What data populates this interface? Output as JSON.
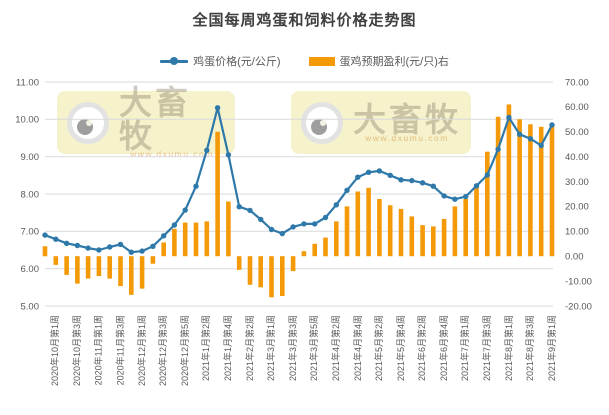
{
  "title": "全国每周鸡蛋和饲料价格走势图",
  "legend": [
    {
      "label": "鸡蛋价格(元/公斤)",
      "type": "line",
      "color": "#2e79a9"
    },
    {
      "label": "蛋鸡预期盈利(元/只)右",
      "type": "bar",
      "color": "#f49908"
    }
  ],
  "watermark": {
    "brand": "大畜牧",
    "url": "www.dxumu.com"
  },
  "colors": {
    "line": "#2e79a9",
    "bar": "#f49908",
    "grid": "#d9d9d9",
    "tick_text": "#595959"
  },
  "chart_data": {
    "type": "line+bar combo, dual axis",
    "x_labels_shown_every": 2,
    "x_labels": [
      "2020年10月第1周",
      "2020年10月第3周",
      "2020年11月第1周",
      "2020年11月第3周",
      "2020年12月第1周",
      "2020年12月第3周",
      "2020年12月第5周",
      "2021年1月第2周",
      "2021年1月第4周",
      "2021年2月第2周",
      "2021年3月第1周",
      "2021年3月第3周",
      "2021年3月第5周",
      "2021年4月第2周",
      "2021年4月第4周",
      "2021年5月第2周",
      "2021年5月第4周",
      "2021年6月第2周",
      "2021年6月第4周",
      "2021年7月第1周",
      "2021年7月第3周",
      "2021年8月第1周",
      "2021年8月第3周",
      "2021年9月第1周"
    ],
    "series": [
      {
        "name": "鸡蛋价格(元/公斤)",
        "type": "line",
        "axis": "left",
        "values": [
          6.9,
          6.79,
          6.68,
          6.62,
          6.55,
          6.5,
          6.58,
          6.65,
          6.44,
          6.47,
          6.6,
          6.88,
          7.17,
          7.57,
          8.21,
          9.17,
          10.31,
          9.05,
          7.66,
          7.56,
          7.32,
          7.05,
          6.94,
          7.12,
          7.2,
          7.2,
          7.37,
          7.71,
          8.1,
          8.45,
          8.58,
          8.62,
          8.5,
          8.38,
          8.36,
          8.3,
          8.21,
          7.95,
          7.86,
          7.93,
          8.22,
          8.51,
          9.2,
          10.05,
          9.6,
          9.48,
          9.3,
          9.85
        ]
      },
      {
        "name": "蛋鸡预期盈利(元/只)右",
        "type": "bar",
        "axis": "right",
        "values": [
          4,
          -3.5,
          -7.5,
          -11,
          -9,
          -8,
          -9,
          -12,
          -15.5,
          -13,
          -3,
          5.5,
          11,
          13.5,
          13.5,
          14,
          50,
          22,
          -5.5,
          -11.5,
          -12.5,
          -16.5,
          -16,
          -6,
          2,
          5,
          7.5,
          14,
          20,
          26,
          27.5,
          23,
          20.5,
          19,
          16,
          12.5,
          12,
          15,
          20,
          23,
          29,
          42,
          56,
          61,
          55,
          53,
          52,
          53
        ]
      }
    ],
    "left_axis": {
      "min": 5,
      "max": 11,
      "ticks": [
        "11.00",
        "10.00",
        "9.00",
        "8.00",
        "7.00",
        "6.00",
        "5.00"
      ],
      "tick_values": [
        11,
        10,
        9,
        8,
        7,
        6,
        5
      ]
    },
    "right_axis": {
      "min": -20,
      "max": 70,
      "ticks": [
        "70.00",
        "60.00",
        "50.00",
        "40.00",
        "30.00",
        "20.00",
        "10.00",
        "0.00",
        "-10.00",
        "-20.00"
      ],
      "tick_values": [
        70,
        60,
        50,
        40,
        30,
        20,
        10,
        0,
        -10,
        -20
      ]
    },
    "grid": "horizontal gridlines at left-axis integers",
    "legend_position": "top center"
  }
}
